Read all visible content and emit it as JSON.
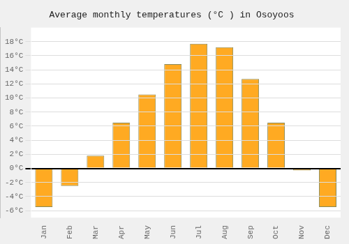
{
  "chart_data": {
    "type": "bar",
    "title": "Average monthly temperatures (°C ) in Osoyoos",
    "categories": [
      "Jan",
      "Feb",
      "Mar",
      "Apr",
      "May",
      "Jun",
      "Jul",
      "Aug",
      "Sep",
      "Oct",
      "Nov",
      "Dec"
    ],
    "values": [
      -5.5,
      -2.5,
      1.8,
      6.5,
      10.5,
      14.8,
      17.7,
      17.2,
      12.7,
      6.5,
      -0.3,
      -5.5
    ],
    "color": "#FFAA22",
    "ylim": [
      -7,
      20
    ],
    "yticks": [
      {
        "value": -6,
        "label": "-6°C"
      },
      {
        "value": -4,
        "label": "-4°C"
      },
      {
        "value": -2,
        "label": "-2°C"
      },
      {
        "value": 0,
        "label": "0°C"
      },
      {
        "value": 2,
        "label": "2°C"
      },
      {
        "value": 4,
        "label": "4°C"
      },
      {
        "value": 6,
        "label": "6°C"
      },
      {
        "value": 8,
        "label": "8°C"
      },
      {
        "value": 10,
        "label": "10°C"
      },
      {
        "value": 12,
        "label": "12°C"
      },
      {
        "value": 14,
        "label": "14°C"
      },
      {
        "value": 16,
        "label": "16°C"
      },
      {
        "value": 18,
        "label": "18°C"
      }
    ],
    "grid": true
  }
}
